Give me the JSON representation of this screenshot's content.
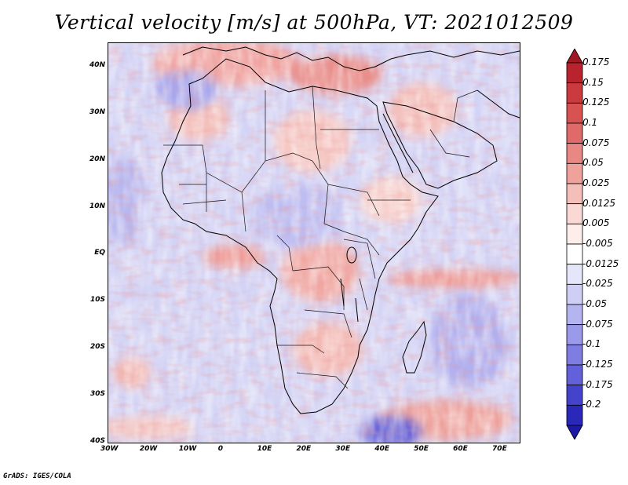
{
  "title": "Vertical velocity [m/s] at 500hPa, VT: 2021012509",
  "footer": "GrADS: IGES/COLA",
  "map": {
    "lon_range": [
      -30,
      75
    ],
    "lat_range": [
      -40,
      45
    ],
    "x_ticks": [
      "30W",
      "20W",
      "10W",
      "0",
      "10E",
      "20E",
      "30E",
      "40E",
      "50E",
      "60E",
      "70E"
    ],
    "y_ticks": [
      "40N",
      "30N",
      "20N",
      "10N",
      "EQ",
      "10S",
      "20S",
      "30S",
      "40S"
    ]
  },
  "colorbar": {
    "levels": [
      {
        "label": "0.175",
        "color": "#b8232e"
      },
      {
        "label": "0.15",
        "color": "#cb3a3f"
      },
      {
        "label": "0.125",
        "color": "#d95252"
      },
      {
        "label": "0.1",
        "color": "#e06a69"
      },
      {
        "label": "0.075",
        "color": "#e88783"
      },
      {
        "label": "0.05",
        "color": "#efa29c"
      },
      {
        "label": "0.025",
        "color": "#f5bfb9"
      },
      {
        "label": "0.0125",
        "color": "#fad8d4"
      },
      {
        "label": "0.005",
        "color": "#fdeeec"
      },
      {
        "label": "-0.005",
        "color": "#ffffff"
      },
      {
        "label": "-0.0125",
        "color": "#e6e6fb"
      },
      {
        "label": "-0.025",
        "color": "#cfcff6"
      },
      {
        "label": "-0.05",
        "color": "#b4b4f0"
      },
      {
        "label": "-0.075",
        "color": "#9a99ea"
      },
      {
        "label": "-0.1",
        "color": "#7e7de2"
      },
      {
        "label": "-0.125",
        "color": "#6261d9"
      },
      {
        "label": "-0.175",
        "color": "#4443cc"
      },
      {
        "label": "-0.2",
        "color": "#2a28b8"
      }
    ],
    "under_color": "#1c19a8",
    "over_color": "#a01822"
  }
}
